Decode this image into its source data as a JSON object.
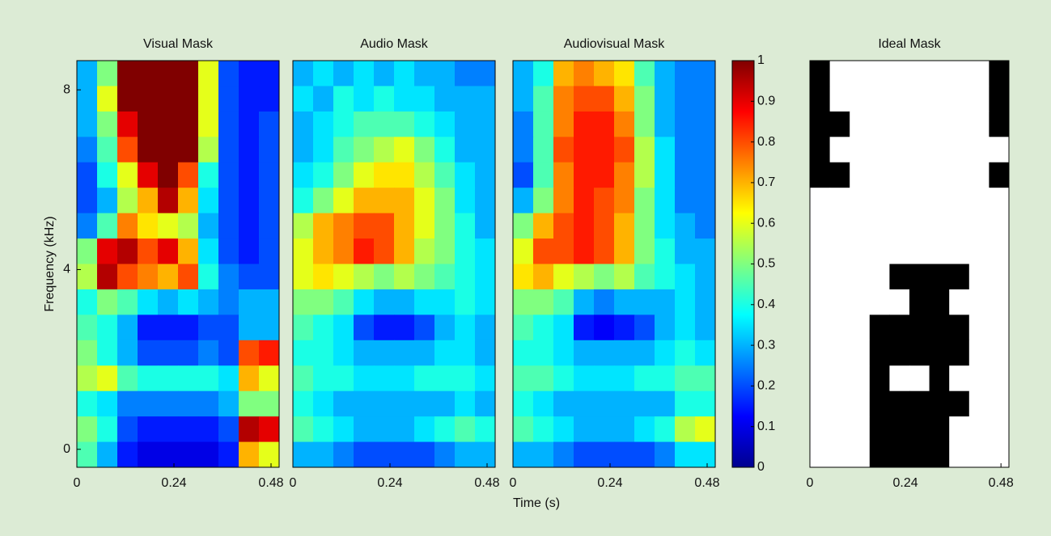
{
  "chart_data": [
    {
      "type": "heatmap",
      "title": "Visual Mask",
      "ylabel": "Frequency (kHz)",
      "cmap": "jet",
      "xlim": [
        0,
        0.5
      ],
      "xticks": [
        0,
        0.24,
        0.48
      ],
      "ylim": [
        -0.4,
        8.65
      ],
      "yticks": [
        0,
        4,
        8
      ],
      "values": [
        [
          0.3,
          0.5,
          1,
          1,
          1,
          1,
          0.6,
          0.2,
          0.15,
          0.15
        ],
        [
          0.3,
          0.6,
          1,
          1,
          1,
          1,
          0.6,
          0.2,
          0.15,
          0.15
        ],
        [
          0.3,
          0.5,
          0.9,
          1,
          1,
          1,
          0.6,
          0.2,
          0.15,
          0.2
        ],
        [
          0.25,
          0.45,
          0.8,
          1,
          1,
          1,
          0.55,
          0.2,
          0.15,
          0.2
        ],
        [
          0.2,
          0.4,
          0.6,
          0.9,
          1,
          0.8,
          0.4,
          0.2,
          0.15,
          0.2
        ],
        [
          0.2,
          0.3,
          0.55,
          0.7,
          0.95,
          0.7,
          0.35,
          0.2,
          0.15,
          0.2
        ],
        [
          0.25,
          0.45,
          0.75,
          0.65,
          0.6,
          0.55,
          0.3,
          0.2,
          0.15,
          0.2
        ],
        [
          0.5,
          0.9,
          0.95,
          0.8,
          0.9,
          0.7,
          0.35,
          0.2,
          0.15,
          0.2
        ],
        [
          0.55,
          0.95,
          0.8,
          0.75,
          0.7,
          0.8,
          0.4,
          0.25,
          0.2,
          0.2
        ],
        [
          0.4,
          0.5,
          0.45,
          0.35,
          0.3,
          0.35,
          0.3,
          0.25,
          0.3,
          0.3
        ],
        [
          0.45,
          0.4,
          0.3,
          0.15,
          0.15,
          0.15,
          0.2,
          0.2,
          0.3,
          0.3
        ],
        [
          0.5,
          0.4,
          0.3,
          0.2,
          0.2,
          0.2,
          0.25,
          0.2,
          0.8,
          0.85
        ],
        [
          0.55,
          0.6,
          0.45,
          0.4,
          0.4,
          0.4,
          0.4,
          0.35,
          0.7,
          0.6
        ],
        [
          0.4,
          0.35,
          0.25,
          0.25,
          0.25,
          0.25,
          0.25,
          0.3,
          0.5,
          0.5
        ],
        [
          0.5,
          0.4,
          0.2,
          0.15,
          0.15,
          0.15,
          0.15,
          0.2,
          0.95,
          0.9
        ],
        [
          0.45,
          0.3,
          0.15,
          0.1,
          0.1,
          0.1,
          0.1,
          0.15,
          0.7,
          0.6
        ]
      ]
    },
    {
      "type": "heatmap",
      "title": "Audio Mask",
      "xlabel": "Time (s)",
      "cmap": "jet",
      "xlim": [
        0,
        0.5
      ],
      "xticks": [
        0,
        0.24,
        0.48
      ],
      "ylim": [
        -0.4,
        8.65
      ],
      "values": [
        [
          0.3,
          0.35,
          0.3,
          0.35,
          0.3,
          0.35,
          0.3,
          0.3,
          0.25,
          0.25
        ],
        [
          0.35,
          0.3,
          0.4,
          0.35,
          0.4,
          0.35,
          0.35,
          0.3,
          0.3,
          0.3
        ],
        [
          0.3,
          0.35,
          0.4,
          0.45,
          0.45,
          0.45,
          0.4,
          0.35,
          0.3,
          0.3
        ],
        [
          0.3,
          0.35,
          0.45,
          0.5,
          0.55,
          0.6,
          0.5,
          0.4,
          0.3,
          0.3
        ],
        [
          0.35,
          0.4,
          0.5,
          0.6,
          0.65,
          0.65,
          0.55,
          0.45,
          0.35,
          0.3
        ],
        [
          0.4,
          0.5,
          0.6,
          0.7,
          0.7,
          0.7,
          0.6,
          0.5,
          0.35,
          0.3
        ],
        [
          0.55,
          0.7,
          0.75,
          0.8,
          0.8,
          0.7,
          0.6,
          0.5,
          0.4,
          0.3
        ],
        [
          0.6,
          0.7,
          0.75,
          0.85,
          0.8,
          0.7,
          0.55,
          0.5,
          0.4,
          0.35
        ],
        [
          0.6,
          0.65,
          0.6,
          0.55,
          0.5,
          0.55,
          0.5,
          0.45,
          0.4,
          0.35
        ],
        [
          0.5,
          0.5,
          0.45,
          0.35,
          0.3,
          0.3,
          0.35,
          0.35,
          0.4,
          0.35
        ],
        [
          0.45,
          0.4,
          0.35,
          0.2,
          0.15,
          0.15,
          0.2,
          0.3,
          0.35,
          0.3
        ],
        [
          0.4,
          0.4,
          0.35,
          0.3,
          0.3,
          0.3,
          0.3,
          0.35,
          0.35,
          0.3
        ],
        [
          0.45,
          0.4,
          0.4,
          0.35,
          0.35,
          0.35,
          0.4,
          0.4,
          0.4,
          0.35
        ],
        [
          0.4,
          0.35,
          0.3,
          0.3,
          0.3,
          0.3,
          0.3,
          0.3,
          0.35,
          0.3
        ],
        [
          0.45,
          0.4,
          0.35,
          0.3,
          0.3,
          0.3,
          0.35,
          0.4,
          0.45,
          0.4
        ],
        [
          0.3,
          0.3,
          0.25,
          0.2,
          0.2,
          0.2,
          0.2,
          0.25,
          0.3,
          0.3
        ]
      ]
    },
    {
      "type": "heatmap",
      "title": "Audiovisual Mask",
      "cmap": "jet",
      "xlim": [
        0,
        0.5
      ],
      "xticks": [
        0,
        0.24,
        0.48
      ],
      "ylim": [
        -0.4,
        8.65
      ],
      "colorbar": {
        "lim": [
          0,
          1
        ],
        "ticks": [
          0,
          0.1,
          0.2,
          0.3,
          0.4,
          0.5,
          0.6,
          0.7,
          0.8,
          0.9,
          1
        ]
      },
      "values": [
        [
          0.3,
          0.4,
          0.7,
          0.75,
          0.7,
          0.65,
          0.45,
          0.3,
          0.25,
          0.25
        ],
        [
          0.3,
          0.45,
          0.75,
          0.8,
          0.8,
          0.7,
          0.5,
          0.3,
          0.25,
          0.25
        ],
        [
          0.25,
          0.45,
          0.75,
          0.85,
          0.85,
          0.75,
          0.5,
          0.3,
          0.25,
          0.25
        ],
        [
          0.25,
          0.45,
          0.8,
          0.85,
          0.85,
          0.8,
          0.55,
          0.35,
          0.25,
          0.25
        ],
        [
          0.2,
          0.45,
          0.75,
          0.85,
          0.85,
          0.75,
          0.55,
          0.35,
          0.25,
          0.25
        ],
        [
          0.3,
          0.5,
          0.75,
          0.85,
          0.8,
          0.75,
          0.5,
          0.35,
          0.25,
          0.25
        ],
        [
          0.5,
          0.7,
          0.8,
          0.85,
          0.8,
          0.7,
          0.5,
          0.35,
          0.3,
          0.25
        ],
        [
          0.6,
          0.8,
          0.8,
          0.85,
          0.8,
          0.7,
          0.5,
          0.4,
          0.3,
          0.3
        ],
        [
          0.65,
          0.7,
          0.6,
          0.55,
          0.5,
          0.55,
          0.45,
          0.4,
          0.35,
          0.3
        ],
        [
          0.5,
          0.5,
          0.45,
          0.3,
          0.25,
          0.3,
          0.3,
          0.3,
          0.35,
          0.3
        ],
        [
          0.45,
          0.4,
          0.35,
          0.15,
          0.12,
          0.15,
          0.2,
          0.3,
          0.35,
          0.3
        ],
        [
          0.4,
          0.4,
          0.35,
          0.3,
          0.3,
          0.3,
          0.3,
          0.35,
          0.4,
          0.35
        ],
        [
          0.45,
          0.45,
          0.4,
          0.35,
          0.35,
          0.35,
          0.4,
          0.4,
          0.45,
          0.45
        ],
        [
          0.4,
          0.35,
          0.3,
          0.3,
          0.3,
          0.3,
          0.3,
          0.3,
          0.4,
          0.4
        ],
        [
          0.45,
          0.4,
          0.35,
          0.3,
          0.3,
          0.3,
          0.35,
          0.4,
          0.55,
          0.6
        ],
        [
          0.3,
          0.3,
          0.25,
          0.2,
          0.2,
          0.2,
          0.2,
          0.25,
          0.35,
          0.35
        ]
      ]
    },
    {
      "type": "heatmap",
      "title": "Ideal Mask",
      "cmap": "gray",
      "xlim": [
        0,
        0.5
      ],
      "xticks": [
        0,
        0.24,
        0.48
      ],
      "ylim": [
        -0.4,
        8.65
      ],
      "values": [
        [
          0,
          1,
          1,
          1,
          1,
          1,
          1,
          1,
          1,
          0
        ],
        [
          0,
          1,
          1,
          1,
          1,
          1,
          1,
          1,
          1,
          0
        ],
        [
          0,
          0,
          1,
          1,
          1,
          1,
          1,
          1,
          1,
          0
        ],
        [
          0,
          1,
          1,
          1,
          1,
          1,
          1,
          1,
          1,
          1
        ],
        [
          0,
          0,
          1,
          1,
          1,
          1,
          1,
          1,
          1,
          0
        ],
        [
          1,
          1,
          1,
          1,
          1,
          1,
          1,
          1,
          1,
          1
        ],
        [
          1,
          1,
          1,
          1,
          1,
          1,
          1,
          1,
          1,
          1
        ],
        [
          1,
          1,
          1,
          1,
          1,
          1,
          1,
          1,
          1,
          1
        ],
        [
          1,
          1,
          1,
          1,
          0,
          0,
          0,
          0,
          1,
          1
        ],
        [
          1,
          1,
          1,
          1,
          1,
          0,
          0,
          1,
          1,
          1
        ],
        [
          1,
          1,
          1,
          0,
          0,
          0,
          0,
          0,
          1,
          1
        ],
        [
          1,
          1,
          1,
          0,
          0,
          0,
          0,
          0,
          1,
          1
        ],
        [
          1,
          1,
          1,
          0,
          1,
          1,
          0,
          1,
          1,
          1
        ],
        [
          1,
          1,
          1,
          0,
          0,
          0,
          0,
          0,
          1,
          1
        ],
        [
          1,
          1,
          1,
          0,
          0,
          0,
          0,
          1,
          1,
          1
        ],
        [
          1,
          1,
          1,
          0,
          0,
          0,
          0,
          1,
          1,
          1
        ]
      ]
    }
  ]
}
